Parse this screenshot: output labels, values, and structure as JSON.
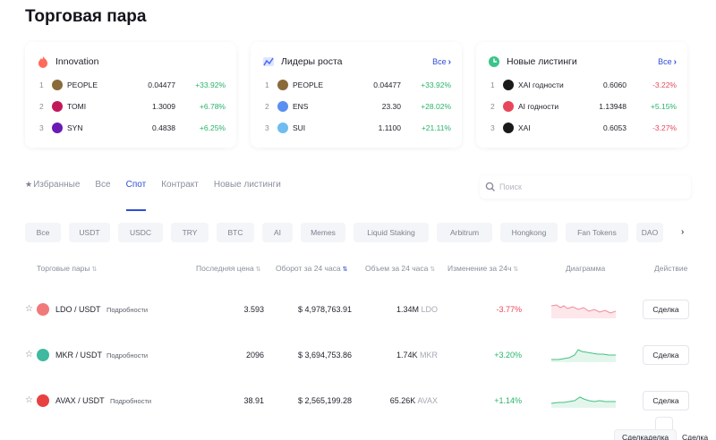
{
  "page": {
    "title": "Торговая пара"
  },
  "cards": [
    {
      "title": "Innovation",
      "icon": "flame-icon",
      "all_label": "",
      "rows": [
        {
          "rank": "1",
          "symbol": "PEOPLE",
          "price": "0.04477",
          "change": "+33.92%",
          "color": "#27b36b",
          "coin_color": "#8a6a3a"
        },
        {
          "rank": "2",
          "symbol": "TOMI",
          "price": "1.3009",
          "change": "+6.78%",
          "color": "#27b36b",
          "coin_color": "#c2185b"
        },
        {
          "rank": "3",
          "symbol": "SYN",
          "price": "0.4838",
          "change": "+6.25%",
          "color": "#27b36b",
          "coin_color": "#6a1bb3"
        }
      ]
    },
    {
      "title": "Лидеры роста",
      "icon": "growth-chart-icon",
      "all_label": "Все",
      "rows": [
        {
          "rank": "1",
          "symbol": "PEOPLE",
          "price": "0.04477",
          "change": "+33.92%",
          "color": "#27b36b",
          "coin_color": "#8a6a3a"
        },
        {
          "rank": "2",
          "symbol": "ENS",
          "price": "23.30",
          "change": "+28.02%",
          "color": "#27b36b",
          "coin_color": "#5a8ff0"
        },
        {
          "rank": "3",
          "symbol": "SUI",
          "price": "1.1100",
          "change": "+21.11%",
          "color": "#27b36b",
          "coin_color": "#6fbcf0"
        }
      ]
    },
    {
      "title": "Новые листинги",
      "icon": "clock-icon",
      "all_label": "Все",
      "rows": [
        {
          "rank": "1",
          "symbol": "XAI годности",
          "price": "0.6060",
          "change": "-3.22%",
          "color": "#e8475b",
          "coin_color": "#1a1a1a"
        },
        {
          "rank": "2",
          "symbol": "AI годности",
          "price": "1.13948",
          "change": "+5.15%",
          "color": "#27b36b",
          "coin_color": "#e8475b"
        },
        {
          "rank": "3",
          "symbol": "XAI",
          "price": "0.6053",
          "change": "-3.27%",
          "color": "#e8475b",
          "coin_color": "#1a1a1a"
        }
      ]
    }
  ],
  "tabs": [
    "Избранные",
    "Все",
    "Спот",
    "Контракт",
    "Новые листинги"
  ],
  "active_tab": "Спот",
  "search": {
    "placeholder": "Поиск"
  },
  "chips": [
    "Все",
    "USDT",
    "USDC",
    "TRY",
    "BTC",
    "AI",
    "Memes",
    "Liquid Staking",
    "Arbitrum",
    "Hongkong",
    "Fan Tokens",
    "DAO"
  ],
  "table": {
    "headers": {
      "pair": "Торговые пары",
      "last_price": "Последняя цена",
      "turnover": "Оборот за 24 часа",
      "volume": "Объем за 24 часа",
      "change": "Изменение за 24ч",
      "chart": "Диаграмма",
      "action": "Действие"
    },
    "rows": [
      {
        "pair": "LDO / USDT",
        "details": "Подробности",
        "price": "3.593",
        "turnover": "$ 4,978,763.91",
        "volume": "1.34M",
        "volume_unit": "LDO",
        "change": "-3.77%",
        "trend": "down",
        "icon_color": "#f07a7a",
        "button": "Сделка"
      },
      {
        "pair": "MKR / USDT",
        "details": "Подробности",
        "price": "2096",
        "turnover": "$ 3,694,753.86",
        "volume": "1.74K",
        "volume_unit": "MKR",
        "change": "+3.20%",
        "trend": "up",
        "icon_color": "#3fb9a0",
        "button": "Сделка"
      },
      {
        "pair": "AVAX / USDT",
        "details": "Подробности",
        "price": "38.91",
        "turnover": "$ 2,565,199.28",
        "volume": "65.26K",
        "volume_unit": "AVAX",
        "change": "+1.14%",
        "trend": "up",
        "icon_color": "#e84142",
        "button": "Сделка"
      }
    ]
  },
  "floating": {
    "tooltip": "Сделкаделка",
    "tooltip2": "Сделка"
  }
}
